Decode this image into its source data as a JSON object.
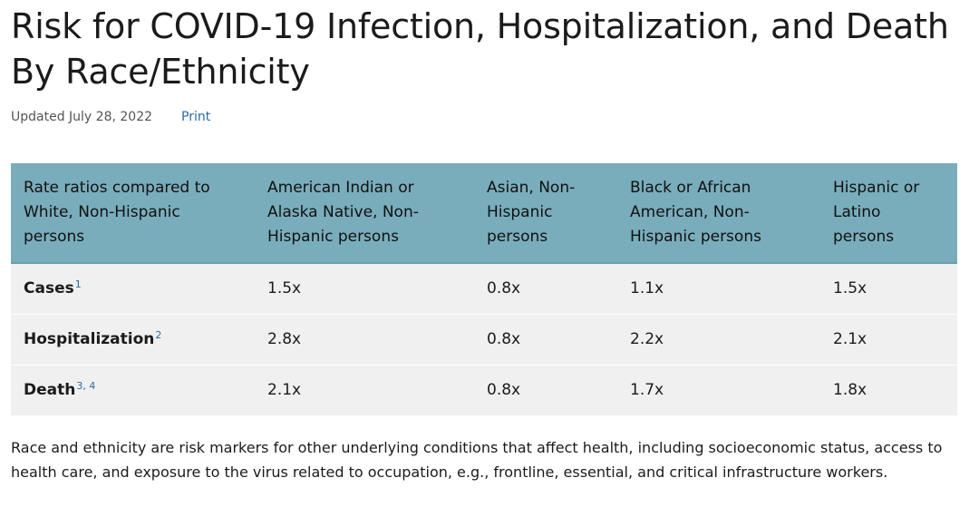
{
  "page": {
    "title": "Risk for COVID-19 Infection, Hospitalization, and Death By Race/Ethnicity",
    "updated": "Updated July 28, 2022",
    "print_label": "Print"
  },
  "table": {
    "headers": [
      "Rate ratios compared to White, Non-Hispanic persons",
      "American Indian or Alaska Native, Non-Hispanic persons",
      "Asian, Non-Hispanic persons",
      "Black or African American, Non-Hispanic persons",
      "Hispanic or Latino persons"
    ],
    "rows": [
      {
        "label": "Cases",
        "ref": "1",
        "values": [
          "1.5x",
          "0.8x",
          "1.1x",
          "1.5x"
        ]
      },
      {
        "label": "Hospitalization",
        "ref": "2",
        "values": [
          "2.8x",
          "0.8x",
          "2.2x",
          "2.1x"
        ]
      },
      {
        "label": "Death",
        "ref": "3, 4",
        "values": [
          "2.1x",
          "0.8x",
          "1.7x",
          "1.8x"
        ]
      }
    ]
  },
  "note": "Race and ethnicity are risk markers for other underlying conditions that affect health, including socioeconomic status, access to health care, and exposure to the virus related to occupation, e.g., frontline, essential, and critical infrastructure workers.",
  "colors": {
    "header_bg": "#79adbb",
    "row_bg": "#f0f0f0",
    "link": "#2d6aa3"
  }
}
